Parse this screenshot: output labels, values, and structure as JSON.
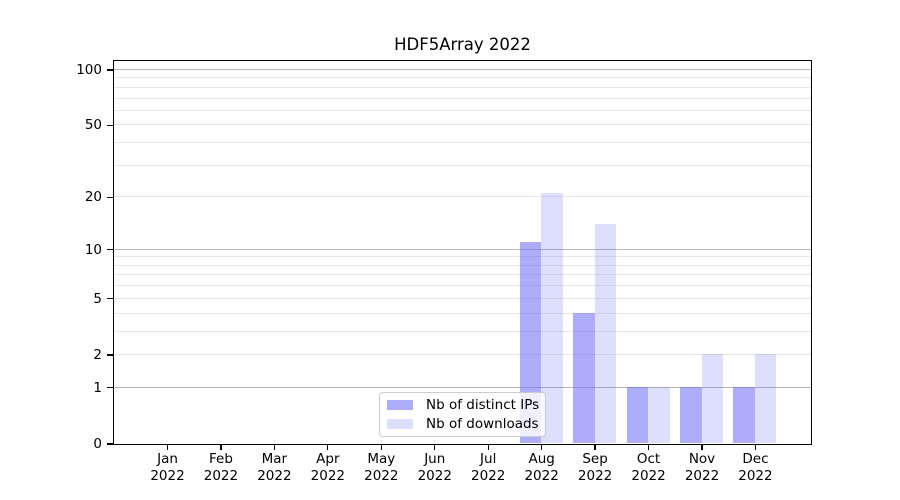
{
  "title": "HDF5Array 2022",
  "chart_data": {
    "type": "bar",
    "title": "HDF5Array 2022",
    "xlabel": "",
    "ylabel": "",
    "y_scale": "log1p",
    "ylim": [
      0,
      112
    ],
    "grid": true,
    "legend_position": "bottom-center",
    "categories": [
      "Jan",
      "Feb",
      "Mar",
      "Apr",
      "May",
      "Jun",
      "Jul",
      "Aug",
      "Sep",
      "Oct",
      "Nov",
      "Dec"
    ],
    "x_tick_year": "2022",
    "y_tick_labels": [
      0,
      1,
      2,
      5,
      10,
      20,
      50,
      100
    ],
    "minor_gridlines": [
      2,
      3,
      4,
      5,
      6,
      7,
      8,
      9,
      20,
      30,
      40,
      50,
      60,
      70,
      80,
      90
    ],
    "major_gridlines": [
      1,
      10,
      100
    ],
    "series": [
      {
        "key": "distinct_ips",
        "name": "Nb of distinct IPs",
        "color": "#6969F58C",
        "values": [
          0,
          0,
          0,
          0,
          0,
          0,
          0,
          11,
          4,
          1,
          1,
          1
        ]
      },
      {
        "key": "downloads",
        "name": "Nb of downloads",
        "color": "#6969F538",
        "values": [
          0,
          0,
          0,
          0,
          0,
          0,
          0,
          21,
          14,
          1,
          2,
          2
        ]
      }
    ],
    "colors": {
      "minor_gridline": "#e7e7e7",
      "major_gridline": "#b7b7b7",
      "axis": "#000000",
      "legend_border": "#cccccc"
    }
  }
}
